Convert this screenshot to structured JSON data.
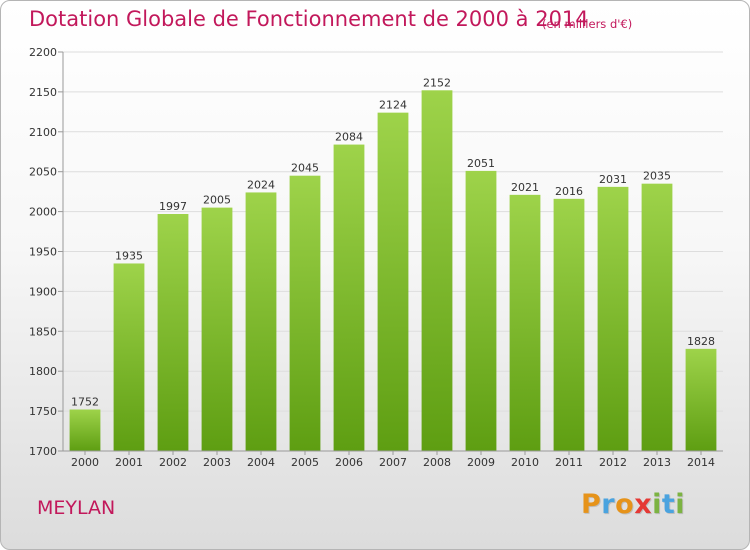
{
  "header": {
    "title": "Dotation Globale de Fonctionnement de 2000 à 2014",
    "subtitle": "(en milliers d'€)"
  },
  "footer": {
    "city": "MEYLAN",
    "logo_letters": [
      {
        "char": "P",
        "color": "#e6931a"
      },
      {
        "char": "r",
        "color": "#4aa3df"
      },
      {
        "char": "o",
        "color": "#e6931a"
      },
      {
        "char": "x",
        "color": "#e53935"
      },
      {
        "char": "i",
        "color": "#7cb342"
      },
      {
        "char": "t",
        "color": "#4aa3df"
      },
      {
        "char": "i",
        "color": "#7cb342"
      }
    ]
  },
  "chart_data": {
    "type": "bar",
    "title": "Dotation Globale de Fonctionnement de 2000 à 2014",
    "subtitle": "(en milliers d'€)",
    "xlabel": "",
    "ylabel": "",
    "categories": [
      "2000",
      "2001",
      "2002",
      "2003",
      "2004",
      "2005",
      "2006",
      "2007",
      "2008",
      "2009",
      "2010",
      "2011",
      "2012",
      "2013",
      "2014"
    ],
    "values": [
      1752,
      1935,
      1997,
      2005,
      2024,
      2045,
      2084,
      2124,
      2152,
      2051,
      2021,
      2016,
      2031,
      2035,
      1828
    ],
    "ylim": [
      1700,
      2200
    ],
    "yticks": [
      1700,
      1750,
      1800,
      1850,
      1900,
      1950,
      2000,
      2050,
      2100,
      2150,
      2200
    ],
    "grid": true,
    "bar_color_top": "#9ed34a",
    "bar_color_bottom": "#5e9e12"
  }
}
